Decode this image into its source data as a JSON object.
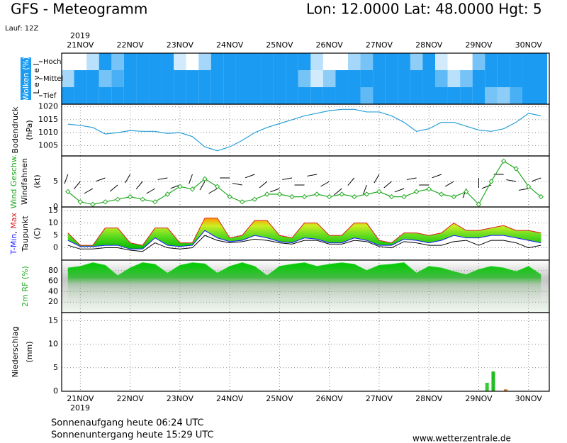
{
  "header": {
    "title": "GFS - Meteogramm",
    "location": "Lon: 12.0000 Lat: 48.0000 Hgt: 5",
    "run": "Lauf: 12Z"
  },
  "chart_data": {
    "type": "meteogram",
    "year": "2019",
    "grid": true,
    "x": [
      -6,
      0,
      6,
      12,
      18,
      24,
      30,
      36,
      42,
      48,
      54,
      60,
      66,
      72,
      78,
      84,
      90,
      96,
      102,
      108,
      114,
      120,
      126,
      132,
      138,
      144,
      150,
      156,
      162,
      168,
      174,
      180,
      186,
      192,
      198,
      204,
      210,
      216,
      222
    ],
    "xlim": [
      -9,
      226
    ],
    "xticks": [
      {
        "value": 0,
        "label": "21NOV"
      },
      {
        "value": 24,
        "label": "22NOV"
      },
      {
        "value": 48,
        "label": "23NOV"
      },
      {
        "value": 72,
        "label": "24NOV"
      },
      {
        "value": 96,
        "label": "25NOV"
      },
      {
        "value": 120,
        "label": "26NOV"
      },
      {
        "value": 144,
        "label": "27NOV"
      },
      {
        "value": 168,
        "label": "28NOV"
      },
      {
        "value": 192,
        "label": "29NOV"
      },
      {
        "value": 216,
        "label": "30NOV"
      }
    ],
    "panels": [
      {
        "type": "cloud-levels",
        "label": "Wolken (%)",
        "axis_label": "L e v e l",
        "color": "#1b9cf2",
        "series": [
          {
            "name": "Hoch",
            "values": [
              0,
              0,
              30,
              100,
              60,
              100,
              100,
              100,
              100,
              20,
              0,
              40,
              100,
              100,
              100,
              100,
              100,
              100,
              100,
              100,
              30,
              0,
              0,
              40,
              60,
              100,
              100,
              100,
              50,
              100,
              20,
              0,
              0,
              60,
              100,
              100,
              100,
              100,
              100
            ]
          },
          {
            "name": "Mittel",
            "values": [
              40,
              100,
              100,
              60,
              80,
              100,
              100,
              100,
              100,
              100,
              100,
              100,
              100,
              100,
              100,
              100,
              100,
              100,
              100,
              60,
              20,
              50,
              100,
              100,
              100,
              100,
              100,
              100,
              100,
              100,
              70,
              30,
              60,
              100,
              100,
              100,
              100,
              100,
              100
            ]
          },
          {
            "name": "Tief",
            "values": [
              100,
              100,
              100,
              100,
              100,
              100,
              100,
              100,
              100,
              100,
              100,
              100,
              100,
              100,
              100,
              100,
              100,
              100,
              100,
              100,
              100,
              100,
              100,
              100,
              70,
              100,
              100,
              100,
              100,
              100,
              100,
              100,
              100,
              100,
              60,
              50,
              80,
              100,
              100
            ]
          }
        ]
      },
      {
        "type": "line",
        "label": "Bodendruck",
        "unit": "(hPa)",
        "ylim": [
          1001,
          1021
        ],
        "yticks": [
          1005,
          1010,
          1015,
          1020
        ],
        "series": [
          {
            "color": "#2a9fd8",
            "values": [
              1013.3,
              1012.8,
              1012,
              1009.5,
              1010,
              1010.8,
              1010.5,
              1010.5,
              1009.7,
              1010,
              1008.5,
              1004.5,
              1003,
              1004.5,
              1007,
              1010,
              1012,
              1013.5,
              1015,
              1016.5,
              1017.5,
              1018.5,
              1019,
              1019,
              1018,
              1018,
              1016.5,
              1014,
              1010.5,
              1011.5,
              1014,
              1014,
              1012.5,
              1011,
              1010.5,
              1011.5,
              1014,
              1017.5,
              1016.5
            ]
          }
        ]
      },
      {
        "type": "wind",
        "label": "Wind Geschw.",
        "label_color": "#22aa22",
        "barb_label": "Windfahnen",
        "unit": "(kt)",
        "ylim": [
          0,
          10
        ],
        "yticks": [
          0,
          5
        ],
        "series": [
          {
            "name": "Wind Geschw.",
            "color": "#22aa22",
            "values": [
              3,
              1,
              0.5,
              1,
              1.5,
              2,
              1.5,
              1,
              2.5,
              4,
              3.5,
              5.5,
              4,
              2,
              1,
              1.5,
              2.5,
              2.5,
              2,
              2,
              2.5,
              2,
              2.5,
              2,
              2.5,
              3,
              2,
              2,
              3,
              3.5,
              2.5,
              2,
              3,
              0.5,
              5,
              9,
              7.5,
              4,
              2
            ]
          },
          {
            "name": "Windfahnen",
            "color": "#000000",
            "values": [
              200,
              220,
              240,
              250,
              230,
              210,
              220,
              240,
              260,
              250,
              200,
              210,
              240,
              270,
              280,
              250,
              230,
              250,
              260,
              270,
              260,
              240,
              230,
              220,
              200,
              210,
              230,
              250,
              260,
              270,
              250,
              240,
              200,
              180,
              250,
              270,
              280,
              260,
              250
            ]
          }
        ]
      },
      {
        "type": "temperature",
        "label_separator": ", ",
        "label": "Taupunkt",
        "unit": "(C)",
        "ylim": [
          -5,
          16.5
        ],
        "yticks": [
          0,
          5,
          10,
          15
        ],
        "series": [
          {
            "name": "T-Min",
            "color": "#1a1aff",
            "values": [
              3,
              0.5,
              0.5,
              1,
              1,
              -0.5,
              -0.5,
              4,
              1,
              0.5,
              1,
              7,
              4,
              2.5,
              3,
              5,
              4,
              2.5,
              2,
              4,
              3.5,
              2,
              2,
              4,
              3,
              1,
              1,
              3.5,
              3,
              2,
              3,
              5,
              4,
              4,
              5,
              5,
              4,
              3,
              2
            ]
          },
          {
            "name": "Max",
            "color": "#e02020",
            "values": [
              6,
              1,
              1,
              8,
              8,
              2,
              1,
              8,
              8,
              2,
              2,
              12,
              12,
              4,
              5,
              11,
              11,
              5,
              4,
              10,
              10,
              5,
              5,
              10,
              10,
              3,
              2,
              6,
              6,
              5,
              6,
              10,
              7,
              7,
              8,
              9,
              7,
              7,
              6
            ]
          },
          {
            "name": "Taupunkt",
            "color": "#000000",
            "values": [
              1,
              -0.5,
              -0.5,
              0,
              0,
              -1,
              -1.5,
              2,
              0,
              -0.5,
              0,
              5,
              3,
              2,
              2.5,
              3.5,
              3,
              2,
              1.5,
              3,
              3,
              1.5,
              1.5,
              3,
              2.5,
              0.5,
              0,
              2.5,
              2,
              1,
              1,
              2.5,
              3,
              1,
              3,
              3,
              2,
              0,
              1
            ]
          }
        ]
      },
      {
        "type": "area",
        "label": "2m RF (%)",
        "label_color": "#22aa22",
        "ylim": [
          0,
          100
        ],
        "yticks": [
          20,
          40,
          60,
          80
        ],
        "series": [
          {
            "color": "#22cc22",
            "values": [
              85,
              88,
              95,
              90,
              70,
              85,
              95,
              92,
              75,
              90,
              95,
              93,
              75,
              88,
              95,
              88,
              70,
              88,
              92,
              95,
              88,
              92,
              95,
              92,
              80,
              90,
              92,
              95,
              75,
              88,
              85,
              78,
              72,
              82,
              88,
              85,
              78,
              88,
              72
            ]
          }
        ]
      },
      {
        "type": "bar",
        "label": "Niederschlag",
        "unit": "(mm)",
        "ylim": [
          0,
          16.7
        ],
        "yticks": [
          0,
          5,
          10,
          15
        ],
        "x": [
          196,
          199,
          205
        ],
        "values": [
          1.8,
          4.2,
          0.4
        ],
        "colors": [
          "#33cc33",
          "#22bb22",
          "#cc7a22"
        ]
      }
    ]
  },
  "footer": {
    "sunrise": "Sonnenaufgang heute 06:24 UTC",
    "sunset": "Sonnenuntergang heute 15:29 UTC",
    "source": "www.wetterzentrale.de"
  }
}
